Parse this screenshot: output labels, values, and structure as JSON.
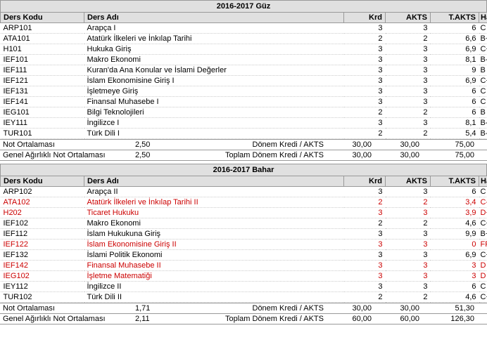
{
  "colors": {
    "header_bg": "#e0e0e0",
    "border": "#999999",
    "row_line": "#cccccc",
    "red": "#cc0000",
    "text": "#000000"
  },
  "typography": {
    "font_family": "Verdana",
    "font_size_pt": 8
  },
  "columns": {
    "code": "Ders Kodu",
    "name": "Ders Adı",
    "krd": "Krd",
    "akts": "AKTS",
    "takts": "T.AKTS",
    "harf": "Harf Notu"
  },
  "summary_labels": {
    "gpa": "Not Ortalaması",
    "gpa_weighted": "Genel Ağırlıklı Not Ortalaması",
    "term_credit": "Dönem Kredi / AKTS",
    "total_credit": "Toplam Dönem Kredi / AKTS"
  },
  "terms": [
    {
      "title": "2016-2017 Güz",
      "rows": [
        {
          "code": "ARP101",
          "name": "Arapça I",
          "krd": "3",
          "akts": "3",
          "takts": "6",
          "harf": "C",
          "red": false
        },
        {
          "code": "ATA101",
          "name": "Atatürk İlkeleri ve İnkılap Tarihi",
          "krd": "2",
          "akts": "2",
          "takts": "6,6",
          "harf": "B+",
          "red": false
        },
        {
          "code": "H101",
          "name": "Hukuka Giriş",
          "krd": "3",
          "akts": "3",
          "takts": "6,9",
          "harf": "C+",
          "red": false
        },
        {
          "code": "IEF101",
          "name": "Makro Ekonomi",
          "krd": "3",
          "akts": "3",
          "takts": "8,1",
          "harf": "B-",
          "red": false
        },
        {
          "code": "IEF111",
          "name": "Kuran'da Ana Konular ve İslami Değerler",
          "krd": "3",
          "akts": "3",
          "takts": "9",
          "harf": "B",
          "red": false
        },
        {
          "code": "IEF121",
          "name": "İslam Ekonomisine Giriş I",
          "krd": "3",
          "akts": "3",
          "takts": "6,9",
          "harf": "C+",
          "red": false
        },
        {
          "code": "IEF131",
          "name": "İşletmeye Giriş",
          "krd": "3",
          "akts": "3",
          "takts": "6",
          "harf": "C",
          "red": false
        },
        {
          "code": "IEF141",
          "name": "Finansal Muhasebe I",
          "krd": "3",
          "akts": "3",
          "takts": "6",
          "harf": "C",
          "red": false
        },
        {
          "code": "IEG101",
          "name": "Bilgi Teknolojileri",
          "krd": "2",
          "akts": "2",
          "takts": "6",
          "harf": "B",
          "red": false
        },
        {
          "code": "IEY111",
          "name": "İngilizce I",
          "krd": "3",
          "akts": "3",
          "takts": "8,1",
          "harf": "B-",
          "red": false
        },
        {
          "code": "TUR101",
          "name": "Türk Dili I",
          "krd": "2",
          "akts": "2",
          "takts": "5,4",
          "harf": "B-",
          "red": false
        }
      ],
      "summary": {
        "gpa": "2,50",
        "gpa_weighted": "2,50",
        "term_credit_krd": "30,00",
        "term_credit_akts": "30,00",
        "term_credit_takts": "75,00",
        "total_credit_krd": "30,00",
        "total_credit_akts": "30,00",
        "total_credit_takts": "75,00"
      }
    },
    {
      "title": "2016-2017 Bahar",
      "rows": [
        {
          "code": "ARP102",
          "name": "Arapça II",
          "krd": "3",
          "akts": "3",
          "takts": "6",
          "harf": "C",
          "red": false
        },
        {
          "code": "ATA102",
          "name": "Atatürk İlkeleri ve İnkılap Tarihi II",
          "krd": "2",
          "akts": "2",
          "takts": "3,4",
          "harf": "C-",
          "red": true
        },
        {
          "code": "H202",
          "name": "Ticaret Hukuku",
          "krd": "3",
          "akts": "3",
          "takts": "3,9",
          "harf": "D+",
          "red": true
        },
        {
          "code": "IEF102",
          "name": "Makro Ekonomi",
          "krd": "2",
          "akts": "2",
          "takts": "4,6",
          "harf": "C+",
          "red": false
        },
        {
          "code": "IEF112",
          "name": "İslam Hukukuna Giriş",
          "krd": "3",
          "akts": "3",
          "takts": "9,9",
          "harf": "B+",
          "red": false
        },
        {
          "code": "IEF122",
          "name": "İslam Ekonomisine Giriş II",
          "krd": "3",
          "akts": "3",
          "takts": "0",
          "harf": "FF",
          "red": true
        },
        {
          "code": "IEF132",
          "name": "İslami Politik Ekonomi",
          "krd": "3",
          "akts": "3",
          "takts": "6,9",
          "harf": "C+",
          "red": false
        },
        {
          "code": "IEF142",
          "name": "Finansal Muhasebe II",
          "krd": "3",
          "akts": "3",
          "takts": "3",
          "harf": "D",
          "red": true
        },
        {
          "code": "IEG102",
          "name": "İşletme Matematiği",
          "krd": "3",
          "akts": "3",
          "takts": "3",
          "harf": "D",
          "red": true
        },
        {
          "code": "IEY112",
          "name": "İngilizce II",
          "krd": "3",
          "akts": "3",
          "takts": "6",
          "harf": "C",
          "red": false
        },
        {
          "code": "TUR102",
          "name": "Türk Dili II",
          "krd": "2",
          "akts": "2",
          "takts": "4,6",
          "harf": "C+",
          "red": false
        }
      ],
      "summary": {
        "gpa": "1,71",
        "gpa_weighted": "2,11",
        "term_credit_krd": "30,00",
        "term_credit_akts": "30,00",
        "term_credit_takts": "51,30",
        "total_credit_krd": "60,00",
        "total_credit_akts": "60,00",
        "total_credit_takts": "126,30"
      }
    }
  ]
}
